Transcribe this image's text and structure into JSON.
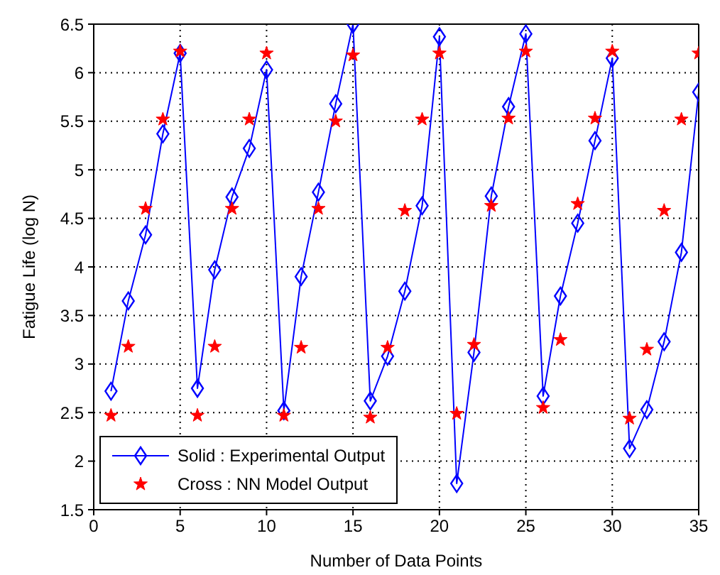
{
  "chart_data": {
    "type": "line",
    "xlabel": "Number of Data Points",
    "ylabel": "Fatigue Life (log N)",
    "x": [
      1,
      2,
      3,
      4,
      5,
      6,
      7,
      8,
      9,
      10,
      11,
      12,
      13,
      14,
      15,
      16,
      17,
      18,
      19,
      20,
      21,
      22,
      23,
      24,
      25,
      26,
      27,
      28,
      29,
      30,
      31,
      32,
      33,
      34,
      35
    ],
    "series": [
      {
        "name": "Solid : Experimental Output",
        "type": "line",
        "color": "#0000ff",
        "marker": "diamond",
        "line_style": "solid",
        "values": [
          2.72,
          3.65,
          4.33,
          5.37,
          6.2,
          2.75,
          3.97,
          4.72,
          5.22,
          6.03,
          2.52,
          3.9,
          4.77,
          5.68,
          6.5,
          2.62,
          3.08,
          3.75,
          4.63,
          6.37,
          1.77,
          3.12,
          4.73,
          5.65,
          6.4,
          2.67,
          3.7,
          4.45,
          5.3,
          6.15,
          2.13,
          2.53,
          3.23,
          4.15,
          5.8
        ]
      },
      {
        "name": "Cross : NN Model Output",
        "type": "scatter",
        "color": "#ff0000",
        "marker": "star",
        "values": [
          2.47,
          3.18,
          4.6,
          5.52,
          6.22,
          2.47,
          3.18,
          4.6,
          5.52,
          6.2,
          2.47,
          3.17,
          4.6,
          5.5,
          6.18,
          2.45,
          3.17,
          4.58,
          5.52,
          6.2,
          2.49,
          3.2,
          4.63,
          5.53,
          6.22,
          2.55,
          3.25,
          4.65,
          5.53,
          6.22,
          2.44,
          3.15,
          4.58,
          5.52,
          6.2
        ]
      }
    ],
    "xlim": [
      0,
      35
    ],
    "xticks": [
      0,
      5,
      10,
      15,
      20,
      25,
      30,
      35
    ],
    "ylim": [
      1.5,
      6.5
    ],
    "yticks": [
      1.5,
      2,
      2.5,
      3,
      3.5,
      4,
      4.5,
      5,
      5.5,
      6,
      6.5
    ],
    "grid": true,
    "legend": "bottom left"
  }
}
